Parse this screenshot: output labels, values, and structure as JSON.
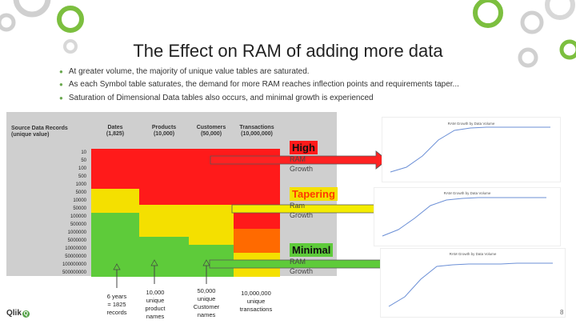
{
  "title": "The Effect on RAM of adding more data",
  "bullets": [
    "At greater volume,  the majority of unique value tables are saturated.",
    "As each Symbol table saturates, the demand for more RAM reaches inflection points and requirements taper...",
    "Saturation of Dimensional Data tables also occurs, and minimal growth is experienced"
  ],
  "table": {
    "header_source": "Source Data Records (unique value)",
    "columns": [
      {
        "name": "Dates",
        "sub": "(1,825)"
      },
      {
        "name": "Products",
        "sub": "(10,000)"
      },
      {
        "name": "Customers",
        "sub": "(50,000)"
      },
      {
        "name": "Transactions",
        "sub": "(10,000,000)"
      }
    ],
    "rows": [
      "10",
      "50",
      "100",
      "500",
      "1000",
      "5000",
      "10000",
      "50000",
      "100000",
      "500000",
      "1000000",
      "5000000",
      "10000000",
      "50000000",
      "100000000",
      "500000000"
    ],
    "colors": {
      "red": "#ff1a1a",
      "yellow": "#f4e000",
      "green": "#5ecb3a",
      "orange": "#ff6a00"
    }
  },
  "labels": {
    "high": {
      "big": "High",
      "small1": "RAM",
      "small2": "Growth"
    },
    "tapering": {
      "big": "Tapering",
      "small1": "Ram",
      "small2": "Growth"
    },
    "minimal": {
      "big": "Minimal",
      "small1": "RAM",
      "small2": "Growth"
    }
  },
  "charts": [
    {
      "title": "RAM Growth by Data Volume"
    },
    {
      "title": "RAM Growth by Data Volume"
    },
    {
      "title": "RAM Growth by Data Volume"
    }
  ],
  "bottom_labels": [
    {
      "l1": "6 years",
      "l2": "= 1825",
      "l3": "records"
    },
    {
      "l1": "10,000",
      "l2": "unique",
      "l3": "product",
      "l4": "names"
    },
    {
      "l1": "50,000",
      "l2": "unique",
      "l3": "Customer",
      "l4": "names"
    },
    {
      "l1": "10,000,000",
      "l2": "unique",
      "l3": "transactions"
    }
  ],
  "logo": "Qlik",
  "page_number": "8"
}
